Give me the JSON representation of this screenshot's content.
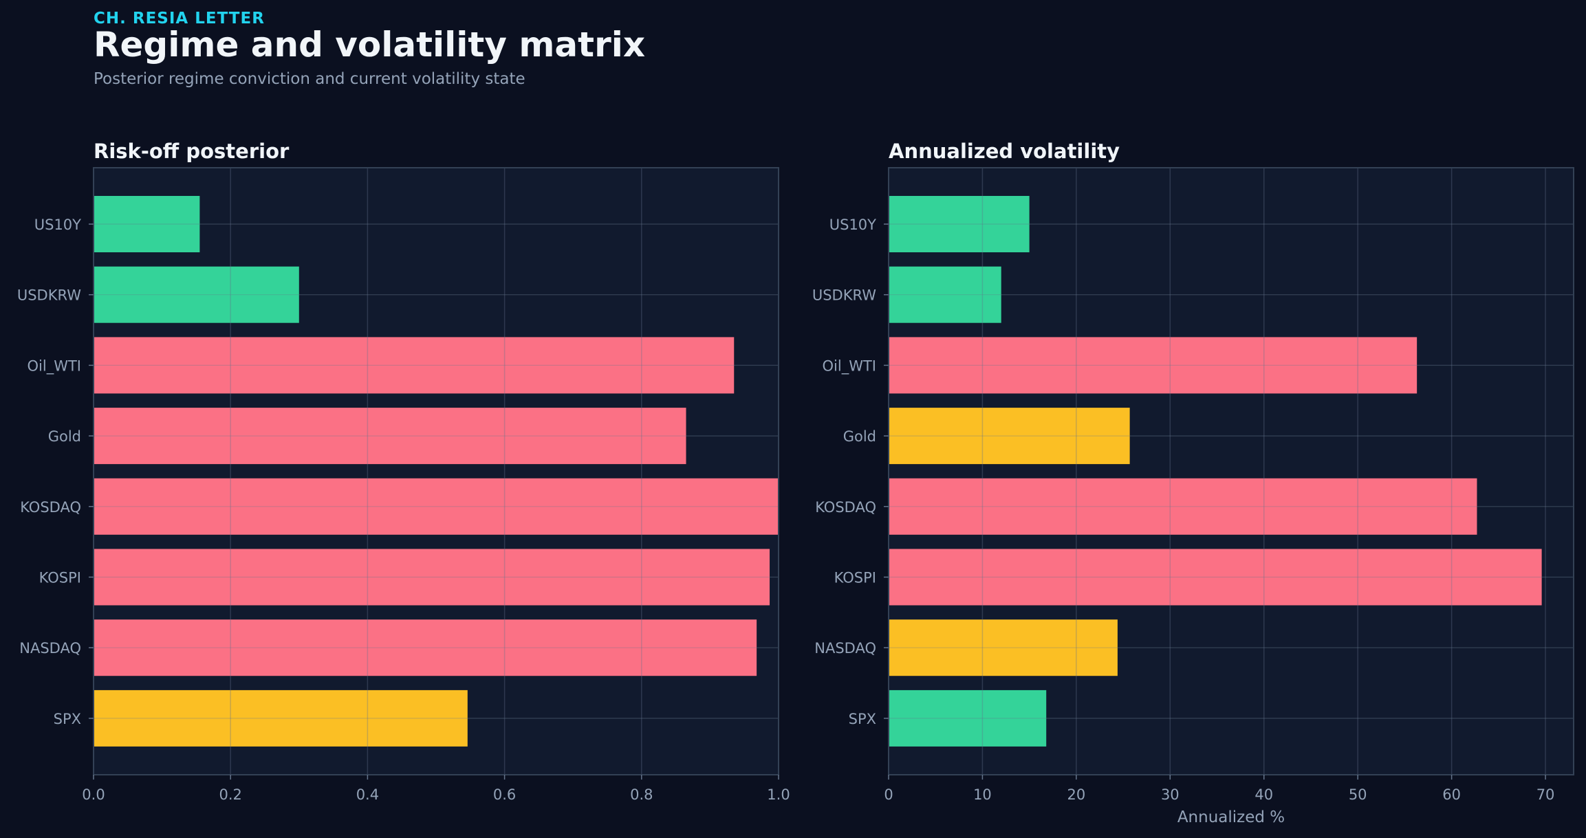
{
  "header": {
    "kicker": "CH. RESIA LETTER",
    "title": "Regime and volatility matrix",
    "subtitle": "Posterior regime conviction and current volatility state"
  },
  "colors": {
    "background": "#0b1020",
    "panel": "#111a2e",
    "green": "#34d399",
    "red": "#fb7185",
    "amber": "#fbbf24",
    "text": "#f1f5f9",
    "muted": "#94a3b8"
  },
  "chart_data": [
    {
      "type": "bar",
      "orientation": "horizontal",
      "title": "Risk-off posterior",
      "xlabel": "",
      "ylabel": "",
      "categories": [
        "US10Y",
        "USDKRW",
        "Oil_WTI",
        "Gold",
        "KOSDAQ",
        "KOSPI",
        "NASDAQ",
        "SPX"
      ],
      "values": [
        0.155,
        0.3,
        0.935,
        0.865,
        1.0,
        0.987,
        0.968,
        0.546
      ],
      "bar_colors": [
        "green",
        "green",
        "red",
        "red",
        "red",
        "red",
        "red",
        "amber"
      ],
      "xlim": [
        0,
        1.0
      ],
      "xticks": [
        0.0,
        0.2,
        0.4,
        0.6,
        0.8,
        1.0
      ],
      "xtick_labels": [
        "0.0",
        "0.2",
        "0.4",
        "0.6",
        "0.8",
        "1.0"
      ],
      "grid": true
    },
    {
      "type": "bar",
      "orientation": "horizontal",
      "title": "Annualized volatility",
      "xlabel": "Annualized %",
      "ylabel": "",
      "categories": [
        "US10Y",
        "USDKRW",
        "Oil_WTI",
        "Gold",
        "KOSDAQ",
        "KOSPI",
        "NASDAQ",
        "SPX"
      ],
      "values": [
        15.0,
        12.0,
        56.3,
        25.7,
        62.7,
        69.6,
        24.4,
        16.8
      ],
      "bar_colors": [
        "green",
        "green",
        "red",
        "amber",
        "red",
        "red",
        "amber",
        "green"
      ],
      "xlim": [
        0,
        73
      ],
      "xticks": [
        0,
        10,
        20,
        30,
        40,
        50,
        60,
        70
      ],
      "xtick_labels": [
        "0",
        "10",
        "20",
        "30",
        "40",
        "50",
        "60",
        "70"
      ],
      "grid": true
    }
  ]
}
